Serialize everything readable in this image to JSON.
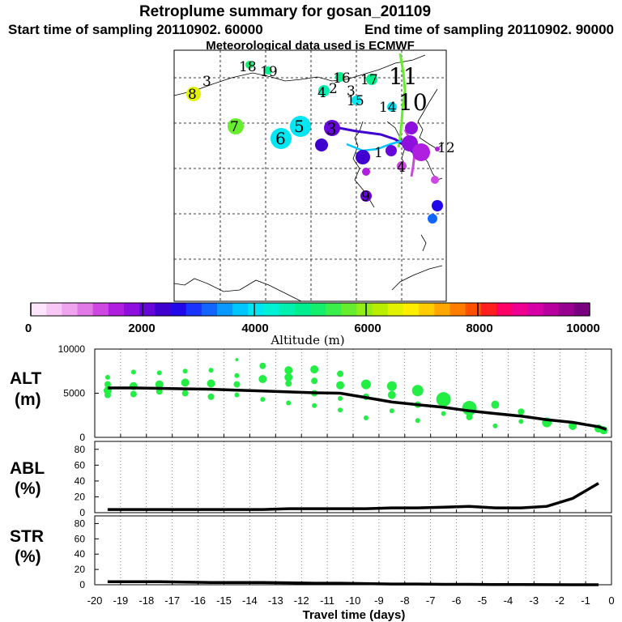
{
  "header": {
    "title": "Retroplume summary for gosan_201109",
    "start_label": "Start time of sampling 20110902. 60000",
    "end_label": "End time of sampling 20110902. 90000",
    "met_label": "Meteorological data used is ECMWF"
  },
  "colorbar": {
    "title": "Altitude (m)",
    "ticks": [
      "0",
      "2000",
      "4000",
      "6000",
      "8000",
      "10000"
    ],
    "colors": [
      "#fde6fb",
      "#f7c8f6",
      "#f0a4ef",
      "#e17ae7",
      "#cf47e1",
      "#b01ee0",
      "#8d10dd",
      "#6606d8",
      "#3f00cf",
      "#2008ea",
      "#1a33ff",
      "#1266ff",
      "#0a9aff",
      "#00c6ff",
      "#00e6f2",
      "#00f2d6",
      "#00f0b0",
      "#00ee90",
      "#14ee6e",
      "#3aee4c",
      "#66ee2e",
      "#92ee14",
      "#baee00",
      "#e2f200",
      "#ffee00",
      "#ffcc00",
      "#ffa600",
      "#ff7e00",
      "#ff5000",
      "#ff1f1f",
      "#ff0066",
      "#f00090",
      "#d600a6",
      "#b8009e",
      "#980090",
      "#780080"
    ]
  },
  "map": {
    "labels": [
      "18",
      "19",
      "3",
      "8",
      "16",
      "17",
      "11",
      "4",
      "2",
      "3",
      "15",
      "14",
      "10",
      "7",
      "5",
      "6",
      "3",
      "1",
      "12",
      "4",
      "9"
    ]
  },
  "chart_data": [
    {
      "type": "scatter",
      "name": "ALT",
      "ylabel_line1": "ALT",
      "ylabel_line2": "(m)",
      "ylim": [
        0,
        10000
      ],
      "yticks": [
        "0",
        "5000",
        "10000"
      ],
      "xlim": [
        -20,
        0
      ],
      "mean_line": {
        "x": [
          -19.5,
          -18.5,
          -17.5,
          -16.5,
          -15.5,
          -14.5,
          -13.5,
          -12.5,
          -11.5,
          -10.5,
          -9.5,
          -8.5,
          -7.5,
          -6.5,
          -5.5,
          -4.5,
          -3.5,
          -2.5,
          -1.5,
          -0.5,
          -0.2
        ],
        "y": [
          5600,
          5600,
          5550,
          5500,
          5450,
          5350,
          5250,
          5150,
          5050,
          5000,
          4500,
          4000,
          3700,
          3400,
          3000,
          2700,
          2400,
          2000,
          1700,
          1200,
          900
        ]
      },
      "points": {
        "x": [
          -19.5,
          -19.5,
          -19.5,
          -19.5,
          -18.5,
          -18.5,
          -18.5,
          -17.5,
          -17.5,
          -17.5,
          -16.5,
          -16.5,
          -16.5,
          -15.5,
          -15.5,
          -15.5,
          -14.5,
          -14.5,
          -14.5,
          -14.5,
          -13.5,
          -13.5,
          -13.5,
          -12.5,
          -12.5,
          -12.5,
          -12.5,
          -11.5,
          -11.5,
          -11.5,
          -11.5,
          -10.5,
          -10.5,
          -10.5,
          -10.5,
          -9.5,
          -9.5,
          -9.5,
          -8.5,
          -8.5,
          -8.5,
          -7.5,
          -7.5,
          -7.5,
          -6.5,
          -6.5,
          -5.5,
          -5.5,
          -4.5,
          -4.5,
          -3.5,
          -3.5,
          -2.5,
          -2.5,
          -1.5,
          -1.5,
          -0.5,
          -0.3
        ],
        "y": [
          6800,
          6000,
          5300,
          4800,
          7400,
          5800,
          4900,
          7300,
          6000,
          5200,
          7500,
          6200,
          5000,
          7600,
          6100,
          4600,
          8800,
          7000,
          6000,
          4800,
          8100,
          6600,
          4300,
          7600,
          6800,
          6100,
          3900,
          7700,
          6400,
          5000,
          3600,
          7200,
          5900,
          4400,
          3100,
          6000,
          4600,
          2200,
          5800,
          4800,
          3000,
          5300,
          3700,
          1900,
          4300,
          2700,
          3300,
          2300,
          3700,
          1300,
          2900,
          1800,
          1700,
          1500,
          1300,
          1100,
          1000,
          800
        ],
        "s": [
          3,
          4,
          5,
          4,
          3,
          5,
          4,
          3,
          5,
          4,
          3,
          5,
          4,
          3,
          5,
          4,
          2,
          3,
          4,
          3,
          4,
          5,
          3,
          5,
          5,
          4,
          3,
          5,
          4,
          4,
          3,
          4,
          5,
          3,
          3,
          6,
          4,
          3,
          6,
          5,
          3,
          7,
          4,
          3,
          9,
          3,
          9,
          4,
          5,
          3,
          4,
          3,
          6,
          4,
          5,
          3,
          5,
          5
        ]
      }
    },
    {
      "type": "line",
      "name": "ABL",
      "ylabel_line1": "ABL",
      "ylabel_line2": "(%)",
      "ylim": [
        0,
        90
      ],
      "yticks": [
        "0",
        "20",
        "40",
        "60",
        "80"
      ],
      "xlim": [
        -20,
        0
      ],
      "x": [
        -19.5,
        -18.5,
        -17.5,
        -16.5,
        -15.5,
        -14.5,
        -13.5,
        -12.5,
        -11.5,
        -10.5,
        -9.5,
        -8.5,
        -7.5,
        -6.5,
        -5.5,
        -4.5,
        -3.5,
        -2.5,
        -1.5,
        -0.5
      ],
      "y": [
        4,
        4,
        4,
        4,
        4,
        4,
        4,
        5,
        5,
        5,
        5,
        6,
        6,
        7,
        8,
        6,
        6,
        8,
        18,
        37
      ]
    },
    {
      "type": "line",
      "name": "STR",
      "ylabel_line1": "STR",
      "ylabel_line2": "(%)",
      "ylim": [
        0,
        90
      ],
      "yticks": [
        "0",
        "20",
        "40",
        "60",
        "80"
      ],
      "xlim": [
        -20,
        0
      ],
      "x": [
        -19.5,
        -18.5,
        -17.5,
        -16.5,
        -15.5,
        -14.5,
        -13.5,
        -12.5,
        -11.5,
        -10.5,
        -9.5,
        -8.5,
        -7.5,
        -6.5,
        -5.5,
        -4.5,
        -3.5,
        -2.5,
        -1.5,
        -0.5
      ],
      "y": [
        4,
        4,
        4,
        3.5,
        3,
        3,
        3,
        2.5,
        2,
        2,
        1.5,
        1,
        1,
        0.5,
        0.5,
        0.3,
        0.2,
        0.1,
        0,
        0
      ],
      "xlabel": "Travel time (days)",
      "xticks": [
        "-20",
        "-19",
        "-18",
        "-17",
        "-16",
        "-15",
        "-14",
        "-13",
        "-12",
        "-11",
        "-10",
        "-9",
        "-8",
        "-7",
        "-6",
        "-5",
        "-4",
        "-3",
        "-2",
        "-1",
        "0"
      ]
    }
  ],
  "colors": {
    "scatter": "#22ee44",
    "line": "#000000"
  }
}
